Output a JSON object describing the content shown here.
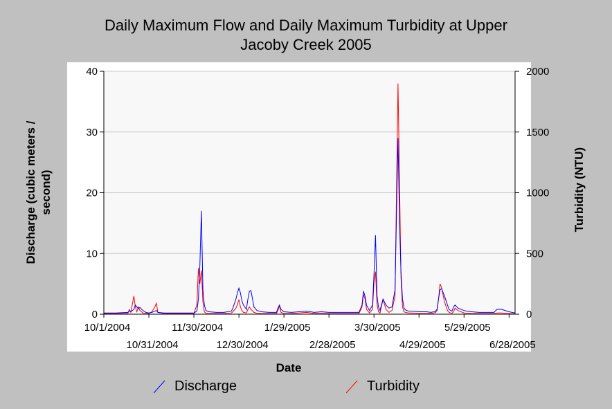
{
  "chart_data": {
    "type": "line",
    "title_line1": "Daily Maximum Flow and Daily Maximum Turbidity at Upper",
    "title_line2": "Jacoby Creek 2005",
    "xlabel": "Date",
    "ylabel_left_line1": "Discharge (cubic meters /",
    "ylabel_left_line2": "second)",
    "ylabel_right": "Turbidity (NTU)",
    "ylim_left": [
      0,
      40
    ],
    "ylim_right": [
      0,
      2000
    ],
    "yticks_left": [
      "0",
      "10",
      "20",
      "30",
      "40"
    ],
    "yticks_right": [
      "0",
      "500",
      "1000",
      "1500",
      "2000"
    ],
    "xlim_days": [
      0,
      274
    ],
    "grid": "horizontal",
    "legend_position": "bottom",
    "x_ticks": [
      {
        "label": "10/1/2004",
        "day": 0,
        "row": 0
      },
      {
        "label": "10/31/2004",
        "day": 30,
        "row": 1
      },
      {
        "label": "11/30/2004",
        "day": 60,
        "row": 0
      },
      {
        "label": "12/30/2004",
        "day": 90,
        "row": 1
      },
      {
        "label": "1/29/2005",
        "day": 120,
        "row": 0
      },
      {
        "label": "2/28/2005",
        "day": 150,
        "row": 1
      },
      {
        "label": "3/30/2005",
        "day": 180,
        "row": 0
      },
      {
        "label": "4/29/2005",
        "day": 210,
        "row": 1
      },
      {
        "label": "5/29/2005",
        "day": 240,
        "row": 0
      },
      {
        "label": "6/28/2005",
        "day": 270,
        "row": 1
      }
    ],
    "series": [
      {
        "name": "Discharge",
        "axis": "left",
        "color": "#0000ff",
        "x": [
          0,
          7,
          8,
          16,
          17,
          18,
          20,
          21,
          22,
          23,
          24,
          26,
          28,
          30,
          32,
          34,
          35,
          36,
          40,
          50,
          60,
          62,
          63,
          64,
          65,
          66,
          67,
          68,
          70,
          75,
          80,
          85,
          86,
          88,
          89,
          90,
          91,
          92,
          93,
          95,
          96,
          97,
          98,
          100,
          102,
          105,
          110,
          115,
          116,
          117,
          118,
          120,
          125,
          130,
          135,
          138,
          140,
          145,
          150,
          155,
          160,
          165,
          170,
          172,
          173,
          174,
          175,
          177,
          179,
          180,
          181,
          182,
          183,
          184,
          186,
          188,
          190,
          192,
          194,
          196,
          197,
          198,
          199,
          200,
          201,
          202,
          203,
          205,
          210,
          215,
          218,
          220,
          221,
          222,
          223,
          224,
          225,
          227,
          229,
          230,
          231,
          232,
          233,
          234,
          236,
          240,
          242,
          245,
          250,
          253,
          255,
          260,
          262,
          265,
          270,
          274
        ],
        "values": [
          0.2,
          0.2,
          0.2,
          0.3,
          0.6,
          0.4,
          0.8,
          1.5,
          1.2,
          0.9,
          1.1,
          0.6,
          0.3,
          0.2,
          0.3,
          0.5,
          0.6,
          0.3,
          0.2,
          0.2,
          0.2,
          0.5,
          2.5,
          8.0,
          17.0,
          4.0,
          1.5,
          0.6,
          0.4,
          0.3,
          0.3,
          0.5,
          1.0,
          2.5,
          3.5,
          4.3,
          3.5,
          2.2,
          1.5,
          0.8,
          2.5,
          3.8,
          3.9,
          1.2,
          0.6,
          0.4,
          0.3,
          0.3,
          1.0,
          1.5,
          0.8,
          0.4,
          0.3,
          0.4,
          0.5,
          0.4,
          0.3,
          0.4,
          0.3,
          0.3,
          0.3,
          0.3,
          0.3,
          1.5,
          3.8,
          3.0,
          1.5,
          0.6,
          1.5,
          6.5,
          13.0,
          3.0,
          1.2,
          0.6,
          2.5,
          1.5,
          1.0,
          1.2,
          4.0,
          29.0,
          15.0,
          7.0,
          2.5,
          1.0,
          0.7,
          0.6,
          0.5,
          0.5,
          0.4,
          0.4,
          0.3,
          0.4,
          0.5,
          0.8,
          2.5,
          4.0,
          4.2,
          3.0,
          1.5,
          0.8,
          0.6,
          0.5,
          1.2,
          1.5,
          1.0,
          0.6,
          0.5,
          0.4,
          0.3,
          0.3,
          0.3,
          0.3,
          0.8,
          0.8,
          0.4,
          0.2
        ]
      },
      {
        "name": "Turbidity",
        "axis": "right",
        "color": "#ff0000",
        "x": [
          0,
          7,
          8,
          16,
          17,
          18,
          20,
          21,
          22,
          23,
          24,
          26,
          28,
          30,
          32,
          34,
          35,
          36,
          40,
          50,
          60,
          62,
          63,
          64,
          65,
          66,
          67,
          68,
          70,
          75,
          80,
          85,
          86,
          88,
          89,
          90,
          91,
          92,
          93,
          95,
          96,
          97,
          98,
          100,
          102,
          105,
          110,
          115,
          116,
          117,
          118,
          120,
          125,
          130,
          135,
          138,
          140,
          145,
          150,
          155,
          160,
          165,
          170,
          172,
          173,
          174,
          175,
          177,
          179,
          180,
          181,
          182,
          183,
          184,
          186,
          188,
          190,
          192,
          194,
          196,
          197,
          198,
          199,
          200,
          201,
          202,
          203,
          205,
          210,
          215,
          218,
          220,
          221,
          222,
          223,
          224,
          225,
          227,
          229,
          230,
          231,
          232,
          233,
          234,
          236,
          240,
          242,
          245,
          250,
          253,
          255,
          260,
          262,
          265,
          270,
          274
        ],
        "values": [
          5,
          5,
          5,
          5,
          40,
          15,
          150,
          60,
          20,
          60,
          30,
          10,
          5,
          5,
          20,
          60,
          90,
          15,
          5,
          5,
          5,
          80,
          380,
          250,
          360,
          100,
          20,
          8,
          5,
          5,
          5,
          10,
          20,
          50,
          80,
          120,
          60,
          30,
          15,
          10,
          40,
          60,
          40,
          15,
          8,
          5,
          5,
          5,
          30,
          70,
          15,
          5,
          5,
          10,
          15,
          10,
          5,
          8,
          5,
          5,
          5,
          5,
          5,
          60,
          160,
          130,
          40,
          10,
          40,
          260,
          350,
          80,
          20,
          10,
          120,
          40,
          15,
          30,
          150,
          1900,
          1100,
          300,
          60,
          20,
          15,
          12,
          10,
          10,
          8,
          8,
          5,
          10,
          15,
          30,
          120,
          250,
          220,
          100,
          30,
          15,
          10,
          8,
          20,
          50,
          30,
          10,
          8,
          5,
          5,
          5,
          5,
          5,
          10,
          10,
          5,
          3
        ]
      }
    ]
  }
}
